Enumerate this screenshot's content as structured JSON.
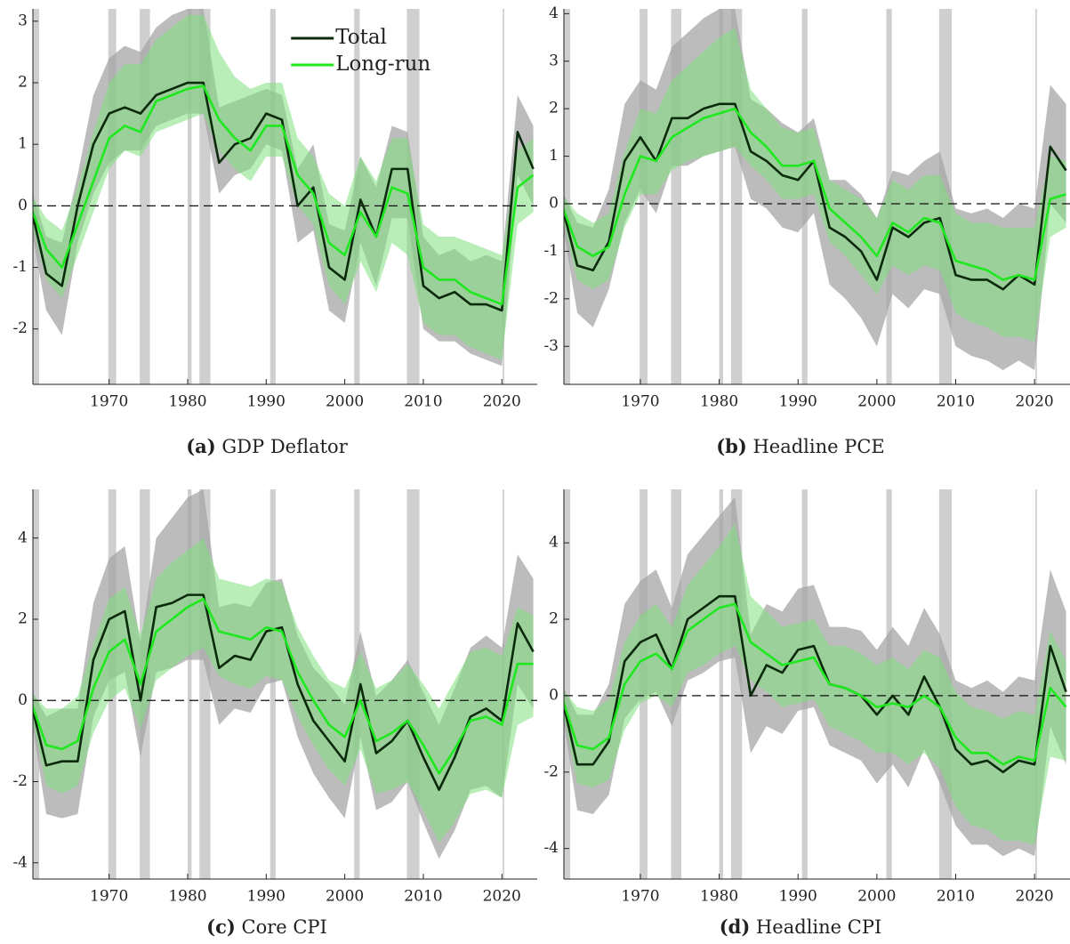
{
  "shaded_periods": [
    [
      1960.3,
      1961.1
    ],
    [
      1969.9,
      1970.9
    ],
    [
      1973.9,
      1975.2
    ],
    [
      1980.0,
      1980.5
    ],
    [
      1981.5,
      1982.9
    ],
    [
      1990.5,
      1991.2
    ],
    [
      2001.2,
      2001.9
    ],
    [
      2007.9,
      2009.5
    ],
    [
      2020.1,
      2020.3
    ]
  ],
  "chart_data": [
    {
      "type": "line",
      "label": "(a)",
      "title": "GDP Deflator",
      "legend": "top",
      "x": [
        1960,
        1962,
        1964,
        1966,
        1968,
        1970,
        1972,
        1974,
        1976,
        1978,
        1980,
        1982,
        1984,
        1986,
        1988,
        1990,
        1992,
        1994,
        1996,
        1998,
        2000,
        2002,
        2004,
        2006,
        2008,
        2010,
        2012,
        2014,
        2016,
        2018,
        2020,
        2022,
        2024
      ],
      "xlim": [
        1960.3,
        2024.5
      ],
      "xticks": [
        1970,
        1980,
        1990,
        2000,
        2010,
        2020
      ],
      "ylim": [
        -2.9,
        3.2
      ],
      "yticks": [
        -2,
        -1,
        0,
        1,
        2,
        3
      ],
      "hline": 0,
      "series": [
        {
          "name": "Total",
          "color": "#0b2a0b",
          "values": [
            0,
            -1.1,
            -1.3,
            0.0,
            1.0,
            1.5,
            1.6,
            1.5,
            1.8,
            1.9,
            2.0,
            2.0,
            0.7,
            1.0,
            1.1,
            1.5,
            1.4,
            0.0,
            0.3,
            -1.0,
            -1.2,
            0.1,
            -0.5,
            0.6,
            0.6,
            -1.3,
            -1.5,
            -1.4,
            -1.6,
            -1.6,
            -1.7,
            1.2,
            0.6
          ]
        },
        {
          "name": "Long-run",
          "color": "#1ee81e",
          "values": [
            0,
            -0.7,
            -1.0,
            -0.3,
            0.4,
            1.1,
            1.3,
            1.2,
            1.7,
            1.8,
            1.9,
            1.95,
            1.4,
            1.1,
            0.9,
            1.3,
            1.3,
            0.5,
            0.2,
            -0.6,
            -0.8,
            -0.1,
            -0.5,
            0.3,
            0.2,
            -1.0,
            -1.2,
            -1.2,
            -1.4,
            -1.5,
            -1.6,
            0.3,
            0.5
          ]
        }
      ],
      "bands": [
        {
          "color": "#a6a6a6",
          "lower": [
            -0.3,
            -1.7,
            -2.1,
            -0.6,
            0.2,
            0.7,
            0.9,
            0.9,
            1.3,
            1.4,
            1.5,
            1.5,
            0.2,
            0.5,
            0.6,
            1.0,
            0.9,
            -0.6,
            -0.4,
            -1.7,
            -1.9,
            -0.6,
            -1.3,
            -0.2,
            -0.2,
            -2.0,
            -2.2,
            -2.2,
            -2.4,
            -2.5,
            -2.6,
            0.5,
            0.0
          ],
          "upper": [
            0.3,
            -0.5,
            -0.6,
            0.5,
            1.8,
            2.4,
            2.6,
            2.5,
            2.9,
            3.1,
            3.2,
            3.2,
            1.6,
            1.7,
            1.8,
            1.9,
            1.8,
            0.6,
            1.0,
            -0.3,
            -0.4,
            0.8,
            0.3,
            1.3,
            1.2,
            -0.5,
            -0.8,
            -0.7,
            -0.9,
            -0.8,
            -0.9,
            1.8,
            1.3
          ]
        },
        {
          "color": "#7fe07f",
          "lower": [
            -0.2,
            -1.2,
            -1.5,
            -0.8,
            -0.1,
            0.6,
            0.9,
            0.8,
            1.2,
            1.3,
            1.4,
            1.5,
            0.9,
            0.6,
            0.4,
            0.8,
            0.8,
            0.0,
            -0.3,
            -1.3,
            -1.6,
            -0.9,
            -1.4,
            -0.6,
            -0.8,
            -1.9,
            -2.1,
            -2.1,
            -2.3,
            -2.4,
            -2.5,
            -0.3,
            -0.1
          ],
          "upper": [
            0.2,
            -0.2,
            -0.4,
            0.3,
            1.2,
            2.0,
            2.3,
            2.3,
            2.7,
            2.9,
            3.1,
            3.1,
            2.5,
            2.1,
            1.9,
            2.0,
            2.0,
            1.1,
            0.8,
            0.2,
            0.0,
            0.8,
            0.4,
            1.1,
            1.1,
            -0.3,
            -0.5,
            -0.5,
            -0.6,
            -0.7,
            -0.8,
            0.9,
            1.1
          ]
        }
      ]
    },
    {
      "type": "line",
      "label": "(b)",
      "title": "Headline PCE",
      "x": [
        1960,
        1962,
        1964,
        1966,
        1968,
        1970,
        1972,
        1974,
        1976,
        1978,
        1980,
        1982,
        1984,
        1986,
        1988,
        1990,
        1992,
        1994,
        1996,
        1998,
        2000,
        2002,
        2004,
        2006,
        2008,
        2010,
        2012,
        2014,
        2016,
        2018,
        2020,
        2022,
        2024
      ],
      "xlim": [
        1960.3,
        2024.5
      ],
      "xticks": [
        1970,
        1980,
        1990,
        2000,
        2010,
        2020
      ],
      "ylim": [
        -3.8,
        4.1
      ],
      "yticks": [
        -3,
        -2,
        -1,
        0,
        1,
        2,
        3,
        4
      ],
      "hline": 0,
      "series": [
        {
          "name": "Total",
          "color": "#0b2a0b",
          "values": [
            0,
            -1.3,
            -1.4,
            -0.8,
            0.9,
            1.4,
            0.9,
            1.8,
            1.8,
            2.0,
            2.1,
            2.1,
            1.1,
            0.9,
            0.6,
            0.5,
            0.9,
            -0.5,
            -0.7,
            -1.0,
            -1.6,
            -0.5,
            -0.7,
            -0.4,
            -0.3,
            -1.5,
            -1.6,
            -1.6,
            -1.8,
            -1.5,
            -1.7,
            1.2,
            0.7
          ]
        },
        {
          "name": "Long-run",
          "color": "#1ee81e",
          "values": [
            0,
            -0.9,
            -1.1,
            -0.9,
            0.2,
            1.0,
            0.9,
            1.4,
            1.6,
            1.8,
            1.9,
            2.0,
            1.5,
            1.2,
            0.8,
            0.8,
            0.9,
            -0.1,
            -0.4,
            -0.7,
            -1.1,
            -0.4,
            -0.6,
            -0.3,
            -0.4,
            -1.2,
            -1.3,
            -1.4,
            -1.6,
            -1.5,
            -1.6,
            0.1,
            0.2
          ]
        }
      ],
      "bands": [
        {
          "color": "#a6a6a6",
          "lower": [
            -0.3,
            -2.3,
            -2.6,
            -1.8,
            -0.4,
            0.3,
            -0.2,
            0.8,
            0.8,
            1.0,
            1.1,
            1.2,
            0.1,
            -0.1,
            -0.5,
            -0.6,
            -0.2,
            -1.7,
            -2.0,
            -2.4,
            -3.0,
            -1.9,
            -2.2,
            -1.8,
            -1.9,
            -3.0,
            -3.2,
            -3.3,
            -3.5,
            -3.3,
            -3.5,
            0.0,
            -0.4
          ],
          "upper": [
            0.3,
            -0.4,
            -0.5,
            0.3,
            2.1,
            2.6,
            2.4,
            3.3,
            3.6,
            3.9,
            4.1,
            4.1,
            2.2,
            2.0,
            1.7,
            1.5,
            1.8,
            0.5,
            0.5,
            0.2,
            -0.3,
            0.7,
            0.6,
            0.9,
            1.1,
            -0.1,
            -0.2,
            -0.1,
            -0.3,
            0.0,
            -0.1,
            2.5,
            2.1
          ]
        },
        {
          "color": "#7fe07f",
          "lower": [
            -0.2,
            -1.6,
            -1.8,
            -1.6,
            -0.5,
            0.2,
            0.2,
            0.7,
            0.9,
            1.0,
            1.1,
            1.2,
            0.8,
            0.5,
            0.1,
            0.1,
            0.2,
            -0.8,
            -1.1,
            -1.5,
            -1.9,
            -1.3,
            -1.5,
            -1.3,
            -1.4,
            -2.3,
            -2.5,
            -2.6,
            -2.8,
            -2.8,
            -2.9,
            -0.7,
            -0.5
          ],
          "upper": [
            0.2,
            -0.2,
            -0.4,
            -0.2,
            1.1,
            2.0,
            1.9,
            2.6,
            2.9,
            3.2,
            3.5,
            3.7,
            2.4,
            2.0,
            1.6,
            1.5,
            1.6,
            0.5,
            0.3,
            0.1,
            -0.3,
            0.5,
            0.3,
            0.6,
            0.6,
            -0.2,
            -0.4,
            -0.4,
            -0.5,
            -0.5,
            -0.5,
            1.0,
            0.9
          ]
        }
      ]
    },
    {
      "type": "line",
      "label": "(c)",
      "title": "Core CPI",
      "x": [
        1960,
        1962,
        1964,
        1966,
        1968,
        1970,
        1972,
        1974,
        1976,
        1978,
        1980,
        1982,
        1984,
        1986,
        1988,
        1990,
        1992,
        1994,
        1996,
        1998,
        2000,
        2002,
        2004,
        2006,
        2008,
        2010,
        2012,
        2014,
        2016,
        2018,
        2020,
        2022,
        2024
      ],
      "xlim": [
        1960.3,
        2024.5
      ],
      "xticks": [
        1970,
        1980,
        1990,
        2000,
        2010,
        2020
      ],
      "ylim": [
        -4.4,
        5.2
      ],
      "yticks": [
        -4,
        -2,
        0,
        2,
        4
      ],
      "hline": 0,
      "series": [
        {
          "name": "Total",
          "color": "#0b2a0b",
          "values": [
            0,
            -1.6,
            -1.5,
            -1.5,
            1.0,
            2.0,
            2.2,
            0.0,
            2.3,
            2.4,
            2.6,
            2.6,
            0.8,
            1.1,
            1.0,
            1.7,
            1.8,
            0.4,
            -0.5,
            -1.0,
            -1.5,
            0.4,
            -1.3,
            -1.0,
            -0.5,
            -1.4,
            -2.2,
            -1.4,
            -0.4,
            -0.2,
            -0.5,
            1.9,
            1.2
          ]
        },
        {
          "name": "Long-run",
          "color": "#1ee81e",
          "values": [
            0,
            -1.1,
            -1.2,
            -1.0,
            0.3,
            1.2,
            1.5,
            0.4,
            1.7,
            2.0,
            2.3,
            2.5,
            1.7,
            1.6,
            1.5,
            1.8,
            1.7,
            0.7,
            0.0,
            -0.6,
            -0.9,
            0.0,
            -1.0,
            -0.8,
            -0.5,
            -1.1,
            -1.8,
            -1.2,
            -0.5,
            -0.4,
            -0.6,
            0.9,
            0.9
          ]
        }
      ],
      "bands": [
        {
          "color": "#a6a6a6",
          "lower": [
            -0.3,
            -2.8,
            -2.9,
            -2.8,
            -0.4,
            0.5,
            0.7,
            -1.4,
            0.7,
            0.8,
            1.0,
            1.0,
            -0.6,
            -0.2,
            -0.3,
            0.4,
            0.5,
            -0.9,
            -1.8,
            -2.4,
            -2.9,
            -0.9,
            -2.7,
            -2.5,
            -2.0,
            -3.0,
            -3.9,
            -3.2,
            -2.2,
            -2.1,
            -2.4,
            0.4,
            -0.2
          ],
          "upper": [
            0.3,
            -0.4,
            -0.2,
            -0.2,
            2.4,
            3.5,
            3.8,
            1.4,
            4.0,
            4.5,
            5.0,
            5.2,
            2.3,
            2.4,
            2.3,
            2.9,
            3.0,
            1.6,
            0.8,
            0.4,
            -0.1,
            1.7,
            0.1,
            0.5,
            1.0,
            0.2,
            -0.6,
            0.3,
            1.3,
            1.6,
            1.3,
            3.6,
            3.0
          ]
        },
        {
          "color": "#7fe07f",
          "lower": [
            -0.2,
            -2.1,
            -2.3,
            -2.1,
            -0.8,
            0.0,
            0.3,
            -0.7,
            0.5,
            0.8,
            1.1,
            1.3,
            0.6,
            0.4,
            0.3,
            0.6,
            0.5,
            -0.4,
            -1.1,
            -1.7,
            -2.1,
            -1.2,
            -2.3,
            -2.2,
            -2.0,
            -2.7,
            -3.5,
            -3.0,
            -2.3,
            -2.2,
            -2.4,
            -0.6,
            -0.4
          ],
          "upper": [
            0.2,
            -0.2,
            -0.2,
            0.1,
            1.4,
            2.5,
            2.8,
            1.6,
            3.0,
            3.4,
            3.7,
            4.0,
            3.0,
            2.9,
            2.8,
            3.0,
            2.9,
            1.8,
            1.1,
            0.5,
            0.3,
            1.2,
            0.3,
            0.5,
            0.9,
            0.4,
            -0.2,
            0.5,
            1.2,
            1.3,
            1.1,
            2.3,
            2.1
          ]
        }
      ]
    },
    {
      "type": "line",
      "label": "(d)",
      "title": "Headline CPI",
      "x": [
        1960,
        1962,
        1964,
        1966,
        1968,
        1970,
        1972,
        1974,
        1976,
        1978,
        1980,
        1982,
        1984,
        1986,
        1988,
        1990,
        1992,
        1994,
        1996,
        1998,
        2000,
        2002,
        2004,
        2006,
        2008,
        2010,
        2012,
        2014,
        2016,
        2018,
        2020,
        2022,
        2024
      ],
      "xlim": [
        1960.3,
        2024.5
      ],
      "xticks": [
        1970,
        1980,
        1990,
        2000,
        2010,
        2020
      ],
      "ylim": [
        -4.8,
        5.4
      ],
      "yticks": [
        -4,
        -2,
        0,
        2,
        4
      ],
      "hline": 0,
      "series": [
        {
          "name": "Total",
          "color": "#0b2a0b",
          "values": [
            0,
            -1.8,
            -1.8,
            -1.2,
            0.9,
            1.4,
            1.6,
            0.7,
            2.0,
            2.3,
            2.6,
            2.6,
            0.0,
            0.8,
            0.6,
            1.2,
            1.3,
            0.3,
            0.2,
            0.0,
            -0.5,
            0.0,
            -0.5,
            0.5,
            -0.3,
            -1.4,
            -1.8,
            -1.7,
            -2.0,
            -1.7,
            -1.8,
            1.3,
            0.1
          ]
        },
        {
          "name": "Long-run",
          "color": "#1ee81e",
          "values": [
            0,
            -1.3,
            -1.4,
            -1.1,
            0.3,
            0.9,
            1.1,
            0.7,
            1.7,
            2.0,
            2.3,
            2.4,
            1.4,
            1.1,
            0.8,
            0.9,
            1.0,
            0.3,
            0.2,
            0.0,
            -0.3,
            -0.2,
            -0.3,
            0.0,
            -0.3,
            -1.1,
            -1.5,
            -1.5,
            -1.8,
            -1.6,
            -1.7,
            0.2,
            -0.3
          ]
        }
      ],
      "bands": [
        {
          "color": "#a6a6a6",
          "lower": [
            -0.3,
            -3.0,
            -3.1,
            -2.6,
            -0.6,
            -0.1,
            0.1,
            -0.8,
            0.4,
            0.6,
            0.9,
            1.0,
            -1.5,
            -0.8,
            -1.0,
            -0.4,
            -0.3,
            -1.3,
            -1.5,
            -1.7,
            -2.3,
            -1.8,
            -2.4,
            -1.4,
            -2.3,
            -3.4,
            -3.9,
            -3.9,
            -4.2,
            -4.0,
            -4.2,
            -0.8,
            -1.8
          ],
          "upper": [
            0.3,
            -0.5,
            -0.5,
            0.3,
            2.4,
            3.0,
            3.3,
            2.3,
            3.7,
            4.2,
            4.7,
            5.2,
            1.6,
            2.4,
            2.2,
            2.8,
            2.9,
            1.8,
            1.8,
            1.7,
            1.2,
            1.8,
            1.3,
            2.3,
            1.6,
            0.4,
            0.2,
            0.4,
            0.1,
            0.5,
            0.4,
            3.3,
            2.2
          ]
        },
        {
          "color": "#7fe07f",
          "lower": [
            -0.2,
            -2.3,
            -2.4,
            -2.2,
            -0.9,
            -0.2,
            0.0,
            -0.3,
            0.6,
            0.8,
            1.1,
            1.3,
            0.4,
            0.1,
            -0.3,
            -0.2,
            -0.1,
            -0.8,
            -1.0,
            -1.2,
            -1.5,
            -1.5,
            -1.8,
            -1.5,
            -1.9,
            -2.9,
            -3.4,
            -3.5,
            -3.8,
            -3.8,
            -3.9,
            -1.6,
            -1.7
          ],
          "upper": [
            0.2,
            -0.3,
            -0.4,
            -0.1,
            1.4,
            2.1,
            2.4,
            1.8,
            2.9,
            3.4,
            3.9,
            4.5,
            2.6,
            2.2,
            1.8,
            1.9,
            2.0,
            1.3,
            1.3,
            1.1,
            0.8,
            1.0,
            0.7,
            1.2,
            1.0,
            0.1,
            -0.3,
            -0.4,
            -0.6,
            -0.4,
            -0.5,
            1.7,
            0.9
          ]
        }
      ]
    }
  ]
}
